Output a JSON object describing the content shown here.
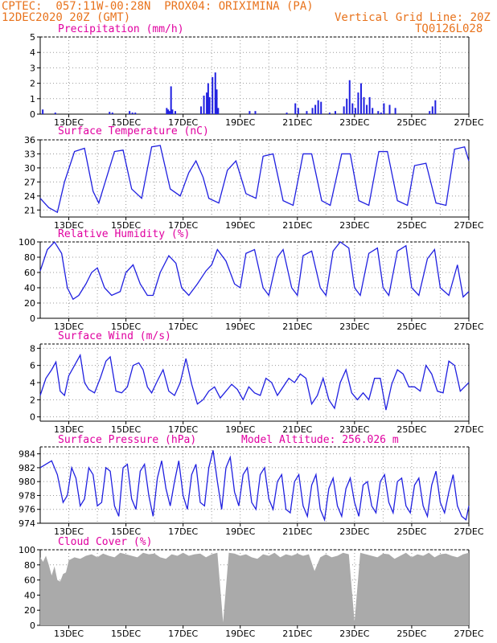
{
  "header": {
    "line1_left": "CPTEC:  057:11W-00:28N  PROX04: ORIXIMINA (PA)",
    "line2_left": "12DEC2020 20Z (GMT)",
    "line1_right": "Vertical Grid Line: 20Z",
    "line2_right": "TQ0126L028"
  },
  "colors": {
    "header": "#e8731d",
    "title": "#e000a0",
    "line": "#2020e0",
    "cloud": "#aaaaaa"
  },
  "x_axis_labels": [
    "13DEC",
    "15DEC",
    "17DEC",
    "19DEC",
    "21DEC",
    "23DEC",
    "25DEC",
    "27DEC"
  ],
  "panels": {
    "precip": {
      "title": "Precipitation (mm/h)"
    },
    "temp": {
      "title": "Surface Temperature (nC)"
    },
    "rh": {
      "title": "Relative Humidity (%)"
    },
    "wind": {
      "title": "Surface Wind (m/s)"
    },
    "pres": {
      "title": "Surface Pressure (hPa)",
      "extra": "Model Altitude: 256.026 m"
    },
    "cloud": {
      "title": "Cloud Cover (%)"
    }
  },
  "chart_data": [
    {
      "type": "bar",
      "id": "precip",
      "title": "Precipitation (mm/h)",
      "ylim": [
        0,
        5
      ],
      "yticks": [
        0,
        1,
        2,
        3,
        4,
        5
      ],
      "x_days": [
        0.06,
        0.5,
        2.4,
        2.5,
        3.1,
        3.2,
        3.3,
        4.4,
        4.45,
        4.5,
        4.55,
        4.6,
        4.7,
        5.6,
        5.7,
        5.8,
        5.85,
        5.9,
        6.0,
        6.1,
        6.15,
        6.2,
        7.3,
        7.5,
        8.6,
        8.9,
        9.0,
        9.3,
        9.5,
        9.6,
        9.7,
        9.8,
        10.1,
        10.3,
        10.6,
        10.7,
        10.8,
        10.9,
        11.0,
        11.1,
        11.2,
        11.3,
        11.4,
        11.5,
        11.6,
        11.8,
        11.9,
        12.0,
        12.2,
        12.4,
        13.6,
        13.7,
        13.8
      ],
      "values": [
        0.3,
        0.1,
        0.15,
        0.1,
        0.2,
        0.1,
        0.1,
        0.4,
        0.3,
        0.2,
        1.8,
        0.3,
        0.2,
        0.5,
        1.2,
        1.4,
        2.0,
        1.1,
        2.4,
        2.7,
        1.6,
        0.4,
        0.2,
        0.2,
        0.1,
        0.7,
        0.4,
        0.2,
        0.4,
        0.6,
        0.9,
        0.8,
        0.1,
        0.2,
        0.5,
        1.0,
        2.2,
        0.7,
        0.4,
        1.4,
        2.0,
        1.1,
        0.6,
        1.1,
        0.4,
        0.2,
        0.1,
        0.7,
        0.6,
        0.4,
        0.2,
        0.5,
        0.9
      ]
    },
    {
      "type": "line",
      "id": "temp",
      "title": "Surface Temperature (nC)",
      "ylim": [
        19.5,
        36
      ],
      "yticks": [
        21,
        24,
        27,
        30,
        33,
        36
      ],
      "x_days": [
        0.0,
        0.3,
        0.6,
        0.85,
        1.2,
        1.55,
        1.85,
        2.05,
        2.3,
        2.6,
        2.9,
        3.2,
        3.55,
        3.9,
        4.2,
        4.55,
        4.9,
        5.2,
        5.45,
        5.7,
        5.9,
        6.25,
        6.55,
        6.85,
        7.2,
        7.55,
        7.8,
        8.15,
        8.5,
        8.85,
        9.2,
        9.5,
        9.85,
        10.15,
        10.55,
        10.85,
        11.15,
        11.5,
        11.85,
        12.15,
        12.5,
        12.85,
        13.1,
        13.5,
        13.85,
        14.2,
        14.5,
        14.85,
        15.0
      ],
      "values": [
        23.5,
        21.5,
        20.5,
        27,
        33.5,
        34.2,
        25,
        22.5,
        27.5,
        33.5,
        33.8,
        25.5,
        23.5,
        34.5,
        34.8,
        25.5,
        24,
        29,
        31.5,
        28,
        23.5,
        22.5,
        29.5,
        31.5,
        24.5,
        23.5,
        32.5,
        33,
        23,
        22,
        33,
        33,
        23,
        22,
        33,
        33,
        23,
        22,
        33.5,
        33.5,
        23,
        22,
        30.5,
        31,
        22.5,
        22,
        34,
        34.5,
        31.5
      ]
    },
    {
      "type": "line",
      "id": "rh",
      "title": "Relative Humidity (%)",
      "ylim": [
        0,
        100
      ],
      "yticks": [
        0,
        20,
        40,
        60,
        80,
        100
      ],
      "x_days": [
        0.0,
        0.25,
        0.5,
        0.75,
        0.95,
        1.15,
        1.35,
        1.6,
        1.8,
        2.0,
        2.25,
        2.5,
        2.8,
        3.0,
        3.25,
        3.5,
        3.75,
        3.95,
        4.2,
        4.5,
        4.75,
        4.95,
        5.2,
        5.5,
        5.8,
        6.0,
        6.2,
        6.5,
        6.8,
        7.0,
        7.2,
        7.5,
        7.8,
        8.0,
        8.3,
        8.5,
        8.8,
        9.0,
        9.2,
        9.5,
        9.8,
        10.0,
        10.25,
        10.5,
        10.8,
        11.0,
        11.2,
        11.5,
        11.8,
        12.0,
        12.2,
        12.5,
        12.8,
        13.0,
        13.25,
        13.55,
        13.8,
        14.0,
        14.3,
        14.6,
        14.8,
        15.0
      ],
      "values": [
        62,
        90,
        100,
        85,
        40,
        25,
        30,
        45,
        60,
        66,
        40,
        30,
        35,
        60,
        70,
        45,
        30,
        30,
        60,
        82,
        72,
        40,
        30,
        45,
        62,
        70,
        90,
        75,
        45,
        40,
        85,
        90,
        40,
        30,
        80,
        90,
        40,
        30,
        82,
        88,
        40,
        30,
        88,
        100,
        92,
        40,
        30,
        85,
        92,
        40,
        30,
        88,
        95,
        40,
        30,
        78,
        90,
        40,
        30,
        70,
        28,
        35
      ]
    },
    {
      "type": "line",
      "id": "wind",
      "title": "Surface Wind (m/s)",
      "ylim": [
        -0.5,
        8.5
      ],
      "yticks": [
        0,
        2,
        4,
        6,
        8
      ],
      "x_days": [
        0.0,
        0.2,
        0.4,
        0.55,
        0.7,
        0.85,
        1.0,
        1.2,
        1.4,
        1.55,
        1.7,
        1.9,
        2.1,
        2.3,
        2.45,
        2.65,
        2.85,
        3.05,
        3.25,
        3.45,
        3.6,
        3.75,
        3.9,
        4.1,
        4.3,
        4.5,
        4.7,
        4.9,
        5.1,
        5.3,
        5.5,
        5.7,
        5.9,
        6.1,
        6.3,
        6.5,
        6.7,
        6.9,
        7.1,
        7.3,
        7.5,
        7.7,
        7.9,
        8.1,
        8.3,
        8.5,
        8.7,
        8.9,
        9.1,
        9.3,
        9.5,
        9.7,
        9.9,
        10.1,
        10.3,
        10.5,
        10.7,
        10.9,
        11.1,
        11.3,
        11.5,
        11.7,
        11.9,
        12.1,
        12.3,
        12.5,
        12.7,
        12.9,
        13.1,
        13.3,
        13.5,
        13.7,
        13.9,
        14.1,
        14.3,
        14.5,
        14.7,
        14.85,
        15.0
      ],
      "values": [
        2.5,
        4.5,
        5.5,
        6.4,
        3.0,
        2.5,
        4.8,
        6.0,
        7.2,
        4.0,
        3.2,
        2.8,
        4.5,
        6.5,
        7.0,
        3.0,
        2.8,
        3.5,
        6.0,
        6.3,
        5.5,
        3.5,
        2.8,
        4.2,
        5.5,
        3.0,
        2.5,
        4.0,
        6.8,
        3.8,
        1.5,
        2.0,
        3.0,
        3.5,
        2.2,
        3.0,
        3.8,
        3.2,
        2.0,
        3.5,
        2.8,
        2.5,
        4.5,
        4.0,
        2.5,
        3.5,
        4.5,
        4.0,
        5.0,
        4.5,
        1.5,
        2.5,
        4.5,
        2.0,
        1.0,
        4.0,
        5.5,
        2.8,
        2.0,
        2.8,
        2.0,
        4.5,
        4.5,
        0.8,
        3.8,
        5.5,
        5.0,
        3.5,
        3.5,
        3.0,
        6.0,
        5.0,
        3.0,
        2.8,
        6.5,
        6.0,
        3.0,
        3.5,
        4.0
      ]
    },
    {
      "type": "line",
      "id": "pres",
      "title": "Surface Pressure (hPa)",
      "ylim": [
        974,
        985
      ],
      "yticks": [
        974,
        976,
        978,
        980,
        982,
        984
      ],
      "x_days": [
        0.0,
        0.2,
        0.4,
        0.6,
        0.8,
        0.95,
        1.1,
        1.25,
        1.4,
        1.55,
        1.7,
        1.85,
        2.0,
        2.15,
        2.3,
        2.45,
        2.6,
        2.75,
        2.9,
        3.05,
        3.2,
        3.35,
        3.5,
        3.65,
        3.8,
        3.95,
        4.1,
        4.25,
        4.4,
        4.55,
        4.7,
        4.85,
        5.0,
        5.15,
        5.3,
        5.45,
        5.6,
        5.75,
        5.9,
        6.05,
        6.2,
        6.35,
        6.5,
        6.65,
        6.8,
        6.95,
        7.1,
        7.25,
        7.4,
        7.55,
        7.7,
        7.85,
        8.0,
        8.15,
        8.3,
        8.45,
        8.6,
        8.75,
        8.9,
        9.05,
        9.2,
        9.35,
        9.5,
        9.65,
        9.8,
        9.95,
        10.1,
        10.25,
        10.4,
        10.55,
        10.7,
        10.85,
        11.0,
        11.15,
        11.3,
        11.45,
        11.6,
        11.75,
        11.9,
        12.05,
        12.2,
        12.35,
        12.5,
        12.65,
        12.8,
        12.95,
        13.1,
        13.25,
        13.4,
        13.55,
        13.7,
        13.85,
        14.0,
        14.15,
        14.3,
        14.45,
        14.6,
        14.75,
        14.9,
        15.0
      ],
      "values": [
        982.0,
        982.5,
        983.0,
        981.0,
        977.0,
        978.0,
        982.0,
        980.5,
        976.5,
        977.5,
        982.0,
        981.0,
        976.5,
        977.0,
        982.0,
        981.5,
        976.5,
        975.0,
        982.0,
        982.5,
        977.5,
        976.0,
        981.5,
        982.5,
        978.0,
        975.0,
        980.5,
        983.0,
        979.0,
        976.5,
        980.0,
        983.0,
        978.0,
        976.0,
        981.0,
        982.5,
        977.0,
        976.5,
        982.0,
        984.5,
        980.0,
        976.0,
        982.0,
        983.5,
        978.5,
        976.5,
        981.0,
        982.0,
        977.0,
        976.0,
        981.0,
        982.0,
        977.5,
        976.0,
        980.0,
        981.0,
        976.0,
        975.5,
        980.0,
        981.0,
        976.5,
        975.0,
        979.5,
        981.0,
        976.0,
        974.5,
        979.0,
        980.5,
        976.5,
        975.0,
        979.0,
        980.5,
        977.0,
        975.0,
        979.5,
        980.0,
        976.5,
        975.5,
        980.0,
        981.0,
        977.0,
        975.5,
        980.0,
        980.5,
        976.5,
        975.5,
        979.5,
        980.5,
        976.5,
        975.0,
        979.5,
        981.5,
        977.0,
        975.5,
        978.5,
        981.0,
        976.5,
        975.0,
        974.5,
        976.5
      ]
    },
    {
      "type": "area",
      "id": "cloud",
      "title": "Cloud Cover (%)",
      "ylim": [
        0,
        100
      ],
      "yticks": [
        0,
        20,
        40,
        60,
        80,
        100
      ],
      "x_days": [
        0.0,
        0.1,
        0.2,
        0.3,
        0.4,
        0.5,
        0.6,
        0.7,
        0.8,
        0.9,
        1.0,
        1.2,
        1.4,
        1.6,
        1.8,
        2.0,
        2.2,
        2.4,
        2.6,
        2.8,
        3.0,
        3.2,
        3.4,
        3.6,
        3.8,
        4.0,
        4.2,
        4.4,
        4.6,
        4.8,
        5.0,
        5.2,
        5.4,
        5.6,
        5.8,
        6.0,
        6.2,
        6.4,
        6.6,
        6.8,
        7.0,
        7.2,
        7.4,
        7.6,
        7.8,
        8.0,
        8.2,
        8.4,
        8.6,
        8.8,
        9.0,
        9.2,
        9.4,
        9.6,
        9.8,
        10.0,
        10.2,
        10.4,
        10.6,
        10.8,
        11.0,
        11.2,
        11.4,
        11.6,
        11.8,
        12.0,
        12.2,
        12.4,
        12.6,
        12.8,
        13.0,
        13.2,
        13.4,
        13.6,
        13.8,
        14.0,
        14.2,
        14.4,
        14.6,
        14.8,
        15.0
      ],
      "values": [
        90,
        84,
        92,
        80,
        66,
        78,
        60,
        58,
        68,
        70,
        86,
        90,
        88,
        92,
        94,
        90,
        95,
        92,
        90,
        96,
        94,
        92,
        90,
        96,
        94,
        95,
        90,
        88,
        94,
        92,
        96,
        92,
        94,
        95,
        90,
        94,
        96,
        4,
        96,
        95,
        92,
        94,
        90,
        88,
        94,
        92,
        96,
        90,
        94,
        92,
        95,
        92,
        94,
        72,
        90,
        94,
        90,
        92,
        96,
        94,
        5,
        96,
        94,
        92,
        90,
        95,
        94,
        88,
        92,
        96,
        90,
        94,
        92,
        96,
        90,
        94,
        95,
        92,
        90,
        94,
        96
      ]
    }
  ]
}
